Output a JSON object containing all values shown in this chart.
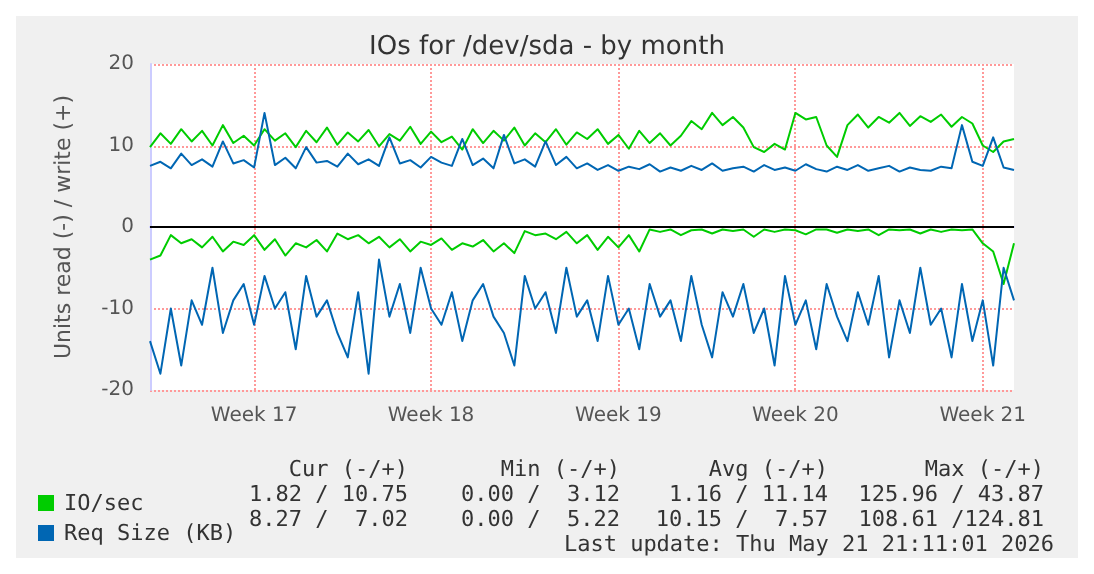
{
  "chart_data": {
    "type": "line",
    "title": "IOs for /dev/sda - by month",
    "ylabel": "Units read (-) / write (+)",
    "categories": [
      null,
      null,
      null,
      null,
      null,
      null,
      null,
      null,
      null,
      null,
      "Week 17",
      null,
      null,
      null,
      null,
      null,
      null,
      null,
      null,
      null,
      null,
      null,
      null,
      null,
      null,
      null,
      null,
      "Week 18",
      null,
      null,
      null,
      null,
      null,
      null,
      null,
      null,
      null,
      null,
      null,
      null,
      null,
      null,
      null,
      null,
      null,
      "Week 19",
      null,
      null,
      null,
      null,
      null,
      null,
      null,
      null,
      null,
      null,
      null,
      null,
      null,
      null,
      null,
      null,
      "Week 20",
      null,
      null,
      null,
      null,
      null,
      null,
      null,
      null,
      null,
      null,
      null,
      null,
      null,
      null,
      null,
      null,
      null,
      "Week 21",
      null,
      null,
      null
    ],
    "ylim": [
      -20,
      20
    ],
    "yticks": [
      -20,
      -10,
      0,
      10,
      20
    ],
    "grid": true,
    "legend": "bottom left",
    "marker": "none",
    "line_style": "solid",
    "ref_lines": [
      {
        "axis": "y",
        "value": 0,
        "color": "#000000"
      }
    ],
    "series": [
      {
        "name": "IO/sec",
        "color": "#00cc00",
        "values": [
          9.8,
          11.5,
          10.2,
          12,
          10.5,
          11.8,
          10,
          12.5,
          10.3,
          11.2,
          10,
          12,
          10.6,
          11.5,
          9.8,
          11.8,
          10.4,
          12.2,
          10.1,
          11.6,
          10.5,
          11.9,
          9.9,
          11.4,
          10.6,
          12.3,
          10.2,
          11.7,
          10.4,
          11.1,
          9.5,
          12,
          10.3,
          11.8,
          10.6,
          12.2,
          10,
          11.5,
          10.4,
          12,
          10.1,
          11.6,
          10.8,
          12,
          10.2,
          11.3,
          9.6,
          11.8,
          10.3,
          11.5,
          10,
          11.2,
          13,
          12,
          14,
          12.5,
          13.5,
          12.2,
          9.8,
          9.2,
          10.2,
          9.5,
          14,
          13.2,
          13.5,
          10,
          8.6,
          12.5,
          13.8,
          12.2,
          13.5,
          12.8,
          14,
          12.4,
          13.6,
          12.9,
          13.8,
          12.3,
          13.5,
          12.7,
          10,
          9.2,
          10.5,
          10.8
        ]
      },
      {
        "color": "#00cc00",
        "values": [
          -4,
          -3.5,
          -1,
          -2,
          -1.5,
          -2.5,
          -1.2,
          -3,
          -1.8,
          -2.2,
          -1,
          -2.8,
          -1.5,
          -3.5,
          -2,
          -2.5,
          -1.6,
          -3,
          -0.8,
          -1.5,
          -1,
          -2,
          -1.2,
          -2.5,
          -1.5,
          -3,
          -1.8,
          -2.2,
          -1.4,
          -2.8,
          -2,
          -2.4,
          -1.6,
          -3,
          -2,
          -3.2,
          -0.5,
          -1,
          -0.8,
          -1.5,
          -0.6,
          -2,
          -1,
          -2.8,
          -1.2,
          -2.5,
          -1,
          -3,
          -0.3,
          -0.6,
          -0.3,
          -1,
          -0.4,
          -0.3,
          -0.8,
          -0.3,
          -0.5,
          -0.3,
          -1.2,
          -0.3,
          -0.6,
          -0.3,
          -0.4,
          -0.9,
          -0.3,
          -0.3,
          -0.7,
          -0.3,
          -0.5,
          -0.3,
          -1,
          -0.3,
          -0.4,
          -0.3,
          -0.8,
          -0.3,
          -0.6,
          -0.3,
          -0.4,
          -0.3,
          -2,
          -3,
          -7,
          -2
        ]
      },
      {
        "name": "Req Size (KB)",
        "color": "#0066b3",
        "values": [
          7.5,
          8,
          7.2,
          9,
          7.6,
          8.3,
          7.4,
          10.5,
          7.8,
          8.2,
          7.3,
          14,
          7.6,
          8.5,
          7.2,
          9.8,
          7.9,
          8.1,
          7.4,
          9,
          7.7,
          8.3,
          7.5,
          11,
          7.8,
          8.2,
          7.3,
          8.6,
          7.9,
          7.5,
          10.8,
          7.6,
          8.4,
          7.2,
          11.3,
          7.8,
          8.3,
          7.4,
          10.5,
          7.6,
          8.6,
          7.2,
          7.8,
          7,
          7.6,
          6.9,
          7.4,
          7.1,
          7.7,
          6.8,
          7.3,
          6.9,
          7.5,
          7,
          7.8,
          6.9,
          7.2,
          7.4,
          6.8,
          7.6,
          7,
          7.3,
          6.9,
          7.7,
          7.1,
          6.8,
          7.4,
          7,
          7.6,
          6.9,
          7.2,
          7.5,
          6.8,
          7.3,
          7,
          6.9,
          7.4,
          7.2,
          12.5,
          8,
          7.5,
          11,
          7.3,
          7
        ]
      },
      {
        "color": "#0066b3",
        "values": [
          -14,
          -18,
          -10,
          -17,
          -9,
          -12,
          -5,
          -13,
          -9,
          -7,
          -12,
          -6,
          -10,
          -8,
          -15,
          -6,
          -11,
          -9,
          -13,
          -16,
          -8,
          -18,
          -4,
          -11,
          -7,
          -13,
          -5,
          -10,
          -12,
          -8,
          -14,
          -9,
          -7,
          -11,
          -13,
          -17,
          -6,
          -10,
          -8,
          -13,
          -5,
          -11,
          -9,
          -14,
          -6,
          -12,
          -10,
          -15,
          -7,
          -11,
          -9,
          -14,
          -6,
          -12,
          -16,
          -8,
          -11,
          -7,
          -13,
          -10,
          -17,
          -6,
          -12,
          -9,
          -15,
          -7,
          -11,
          -14,
          -8,
          -12,
          -6,
          -16,
          -9,
          -13,
          -5,
          -12,
          -10,
          -16,
          -7,
          -14,
          -9,
          -17,
          -5,
          -9
        ]
      }
    ],
    "annotations": [
      "Cur (-/+)",
      "Min (-/+)",
      "Avg (-/+)",
      "Max (-/+)",
      "1.82 / 10.75",
      "0.00 /  3.12",
      "1.16 / 11.14",
      "125.96 / 43.87",
      "8.27 /  7.02",
      "0.00 /  5.22",
      "10.15 /  7.57",
      "108.61 /124.81",
      "Last update: Thu May 21 21:11:01 2026"
    ]
  }
}
